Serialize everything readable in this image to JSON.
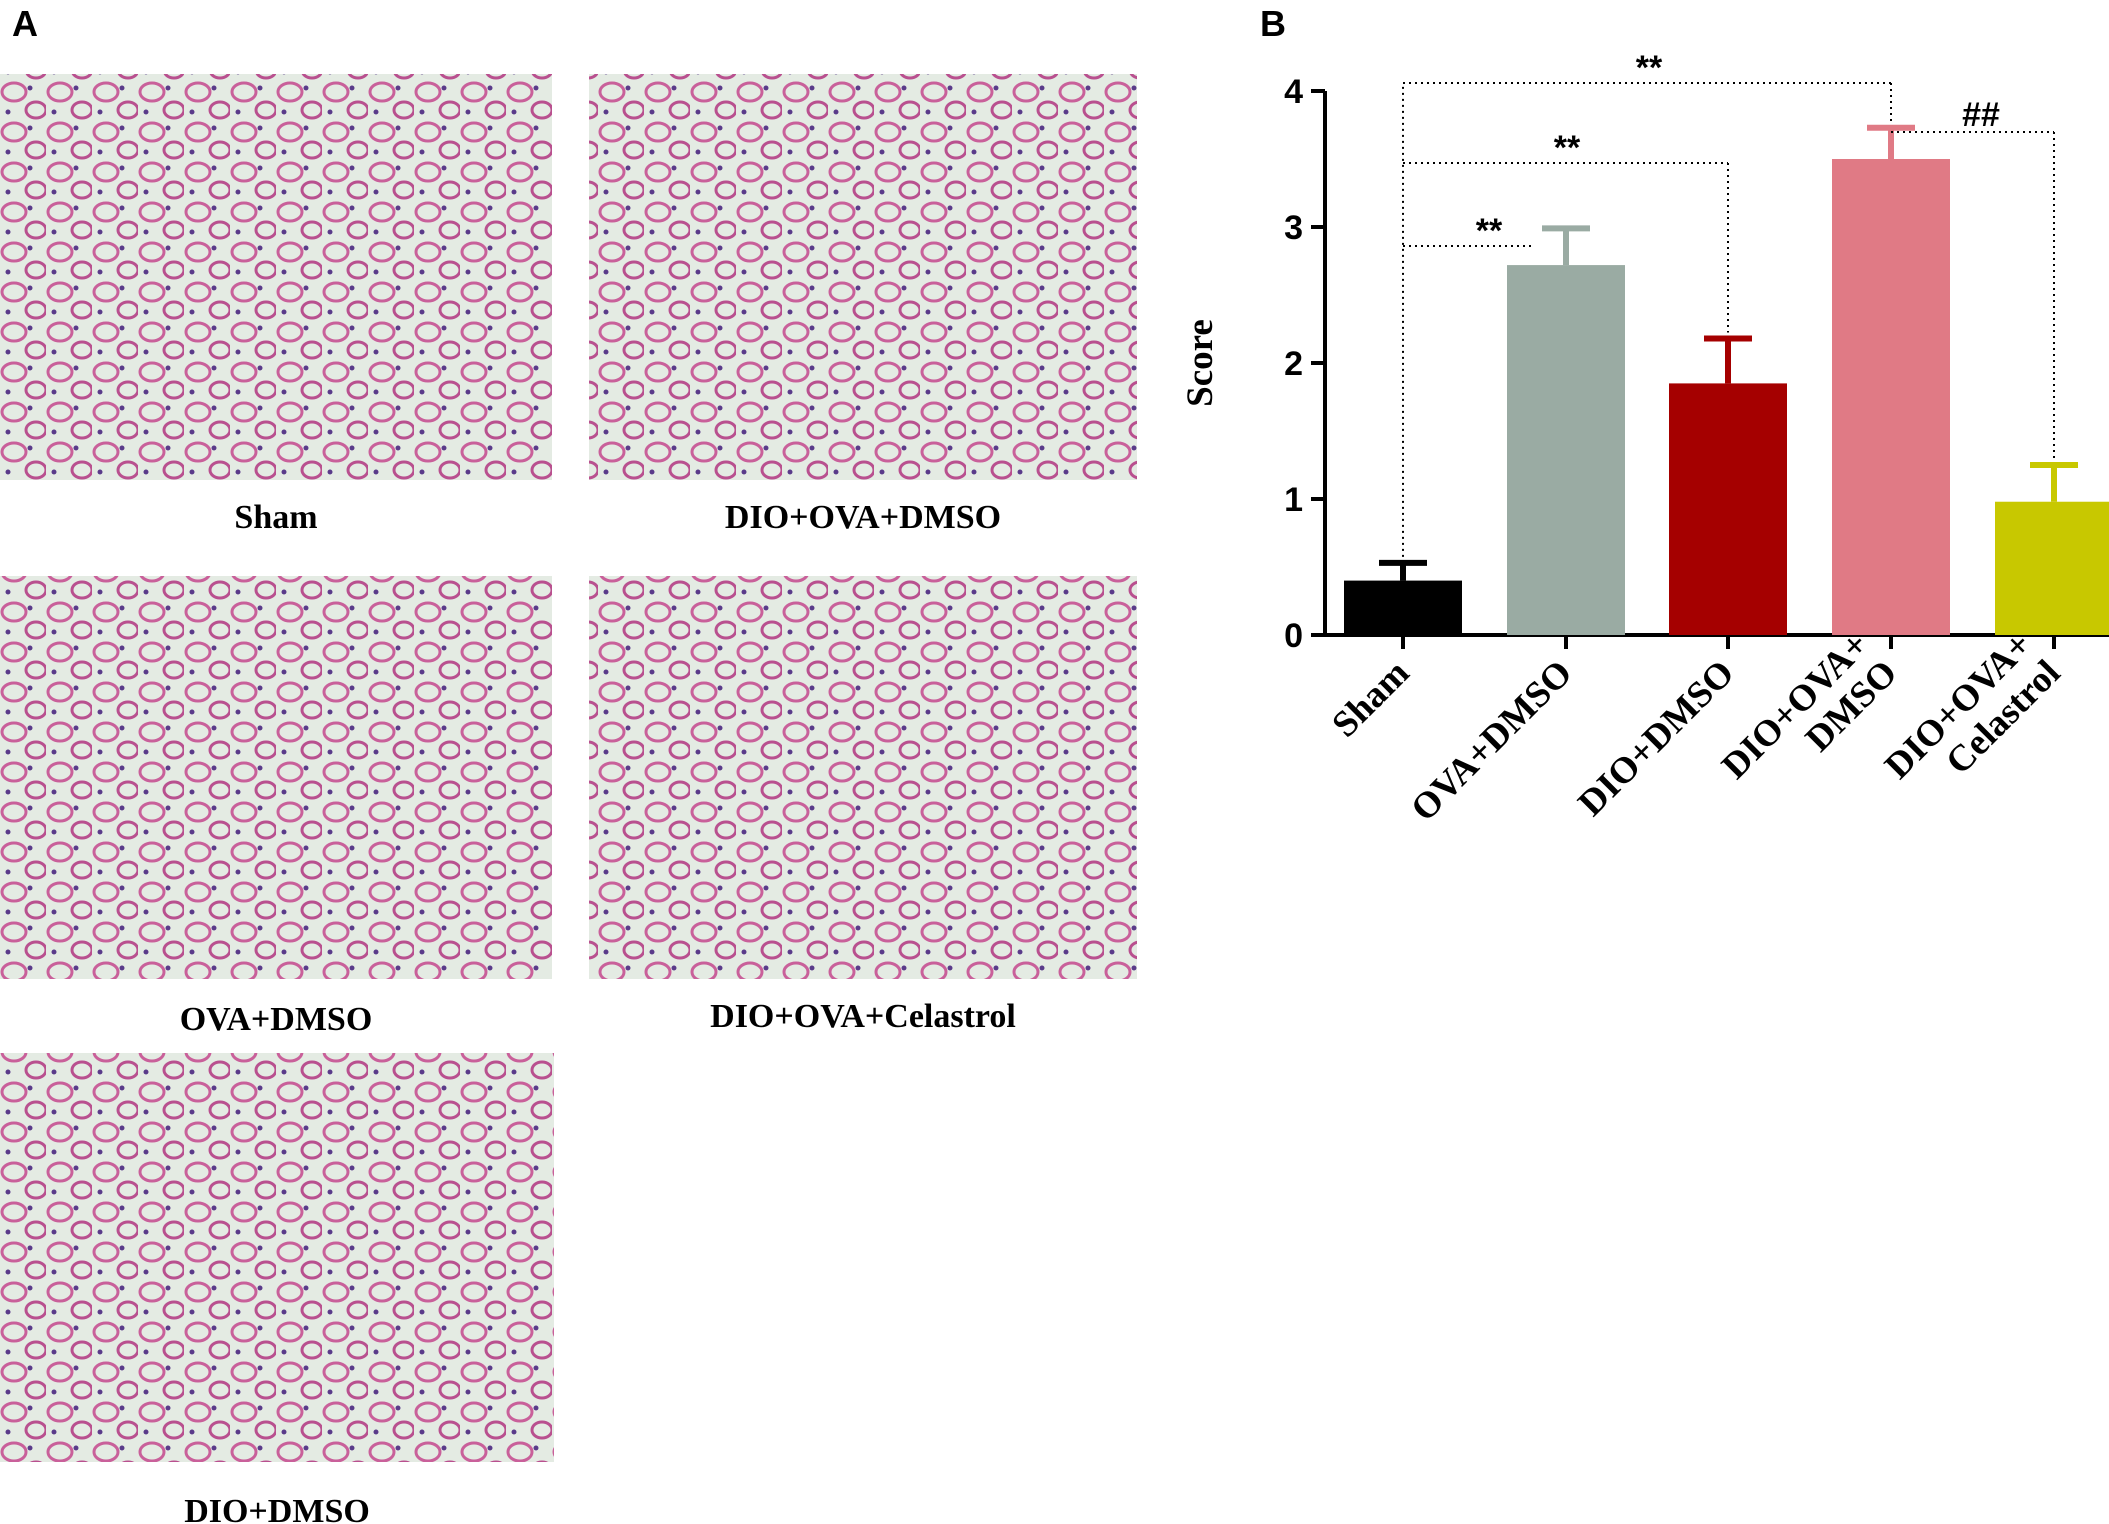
{
  "panel_labels": [
    "A",
    "B"
  ],
  "panel_a": {
    "images": [
      {
        "caption": "Sham"
      },
      {
        "caption": "DIO+OVA+DMSO"
      },
      {
        "caption": "OVA+DMSO"
      },
      {
        "caption": "DIO+OVA+Celastrol"
      },
      {
        "caption": "DIO+DMSO"
      }
    ]
  },
  "chart_data": {
    "type": "bar",
    "ylabel": "Score",
    "categories": [
      "Sham",
      "OVA+DMSO",
      "DIO+DMSO",
      "DIO+OVA+\nDMSO",
      "DIO+OVA+\nCelastrol"
    ],
    "values": [
      0.4,
      2.72,
      1.85,
      3.5,
      0.98
    ],
    "errors": [
      0.13,
      0.27,
      0.33,
      0.23,
      0.27
    ],
    "colors": [
      "#000000",
      "#9aaba3",
      "#a50000",
      "#e07a85",
      "#c8c800"
    ],
    "ylim": [
      0,
      4
    ],
    "yticks": [
      0,
      1,
      2,
      3,
      4
    ],
    "annotations": [
      "**",
      "**",
      "**",
      "##"
    ]
  }
}
